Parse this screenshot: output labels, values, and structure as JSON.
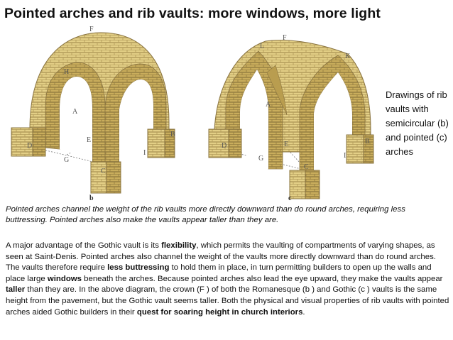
{
  "title": "Pointed arches and rib vaults: more windows, more light",
  "figure": {
    "labels_b": {
      "F": "F",
      "H": "H",
      "A": "A",
      "D": "D",
      "E": "E",
      "B": "B",
      "G": "G",
      "I": "I",
      "C": "C",
      "caption": "b"
    },
    "labels_c": {
      "F": "F",
      "L": "L",
      "K": "K",
      "A": "A",
      "D": "D",
      "E": "E",
      "B": "B",
      "G": "G",
      "I": "I",
      "C": "C",
      "caption": "c"
    },
    "colors": {
      "stone": "#e3cf86",
      "stone_dark": "#c5a955",
      "mortar": "#8a7440",
      "line": "#6d6d6d"
    }
  },
  "side_caption": "Drawings of rib vaults with semicircular (b) and pointed (c) arches",
  "italic_caption": "Pointed arches channel the weight of the rib vaults more directly downward than do round arches, requiring less buttressing. Pointed arches also make the vaults appear taller than they are.",
  "body": {
    "p1": "A major advantage of the Gothic vault is its ",
    "b1": "flexibility",
    "p2": ", which permits the vaulting of compartments of varying shapes, as seen at Saint-Denis. Pointed arches also channel the weight of the vaults more directly downward than do round arches. The vaults therefore require ",
    "b2": "less buttressing",
    "p3": " to hold them in place, in turn permitting builders to open up the walls and place large ",
    "b3": "windows",
    "p4": " beneath the arches. Because pointed arches also lead the eye upward, they make the vaults appear ",
    "b4": "taller",
    "p5": " than they are. In the above diagram,  the crown (F ) of both the Romanesque (b ) and Gothic (c ) vaults is the same height from the pavement, but the Gothic vault seems taller. Both the physical and visual properties of rib vaults with pointed arches aided Gothic builders in their ",
    "b5": "quest for soaring height in church interiors",
    "p6": "."
  }
}
